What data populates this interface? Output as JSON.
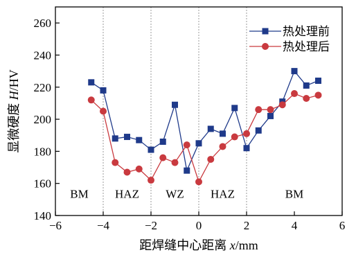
{
  "chart_data": {
    "type": "line",
    "title": "",
    "xlabel_prefix": "距焊缝中心距离 ",
    "xlabel_var": "x",
    "xlabel_unit": "/mm",
    "ylabel_prefix": "显微硬度 ",
    "ylabel_var": "H",
    "ylabel_unit": "/HV",
    "xlim": [
      -6,
      6
    ],
    "ylim": [
      140,
      270
    ],
    "xticks": [
      -6,
      -4,
      -2,
      0,
      2,
      4,
      6
    ],
    "yticks": [
      140,
      160,
      180,
      200,
      220,
      240,
      260
    ],
    "tick_labels_x": [
      "−6",
      "−4",
      "−2",
      "0",
      "2",
      "4",
      "6"
    ],
    "tick_labels_y": [
      "140",
      "160",
      "180",
      "200",
      "220",
      "240",
      "260"
    ],
    "region_dividers": [
      -4,
      -2,
      0,
      2
    ],
    "regions": [
      {
        "label": "BM",
        "x": -5
      },
      {
        "label": "HAZ",
        "x": -3
      },
      {
        "label": "WZ",
        "x": -1
      },
      {
        "label": "HAZ",
        "x": 1
      },
      {
        "label": "BM",
        "x": 4
      }
    ],
    "region_label_y": 151,
    "legend_position": "top-right",
    "series": [
      {
        "name": "热处理前",
        "color": "#1f3a8a",
        "marker": "square",
        "x": [
          -4.5,
          -4,
          -3.5,
          -3,
          -2.5,
          -2,
          -1.5,
          -1,
          -0.5,
          0,
          0.5,
          1,
          1.5,
          2,
          2.5,
          3,
          3.5,
          4,
          4.5,
          5
        ],
        "y": [
          223,
          218,
          188,
          189,
          187,
          181,
          186,
          209,
          168,
          185,
          194,
          191,
          207,
          182,
          193,
          202,
          211,
          230,
          221,
          224
        ]
      },
      {
        "name": "热处理后",
        "color": "#c93a3f",
        "marker": "circle",
        "x": [
          -4.5,
          -4,
          -3.5,
          -3,
          -2.5,
          -2,
          -1.5,
          -1,
          -0.5,
          0,
          0.5,
          1,
          1.5,
          2,
          2.5,
          3,
          3.5,
          4,
          4.5,
          5
        ],
        "y": [
          212,
          205,
          173,
          167,
          169,
          162,
          176,
          173,
          184,
          161,
          175,
          183,
          189,
          191,
          206,
          206,
          209,
          216,
          213,
          215
        ]
      }
    ]
  }
}
